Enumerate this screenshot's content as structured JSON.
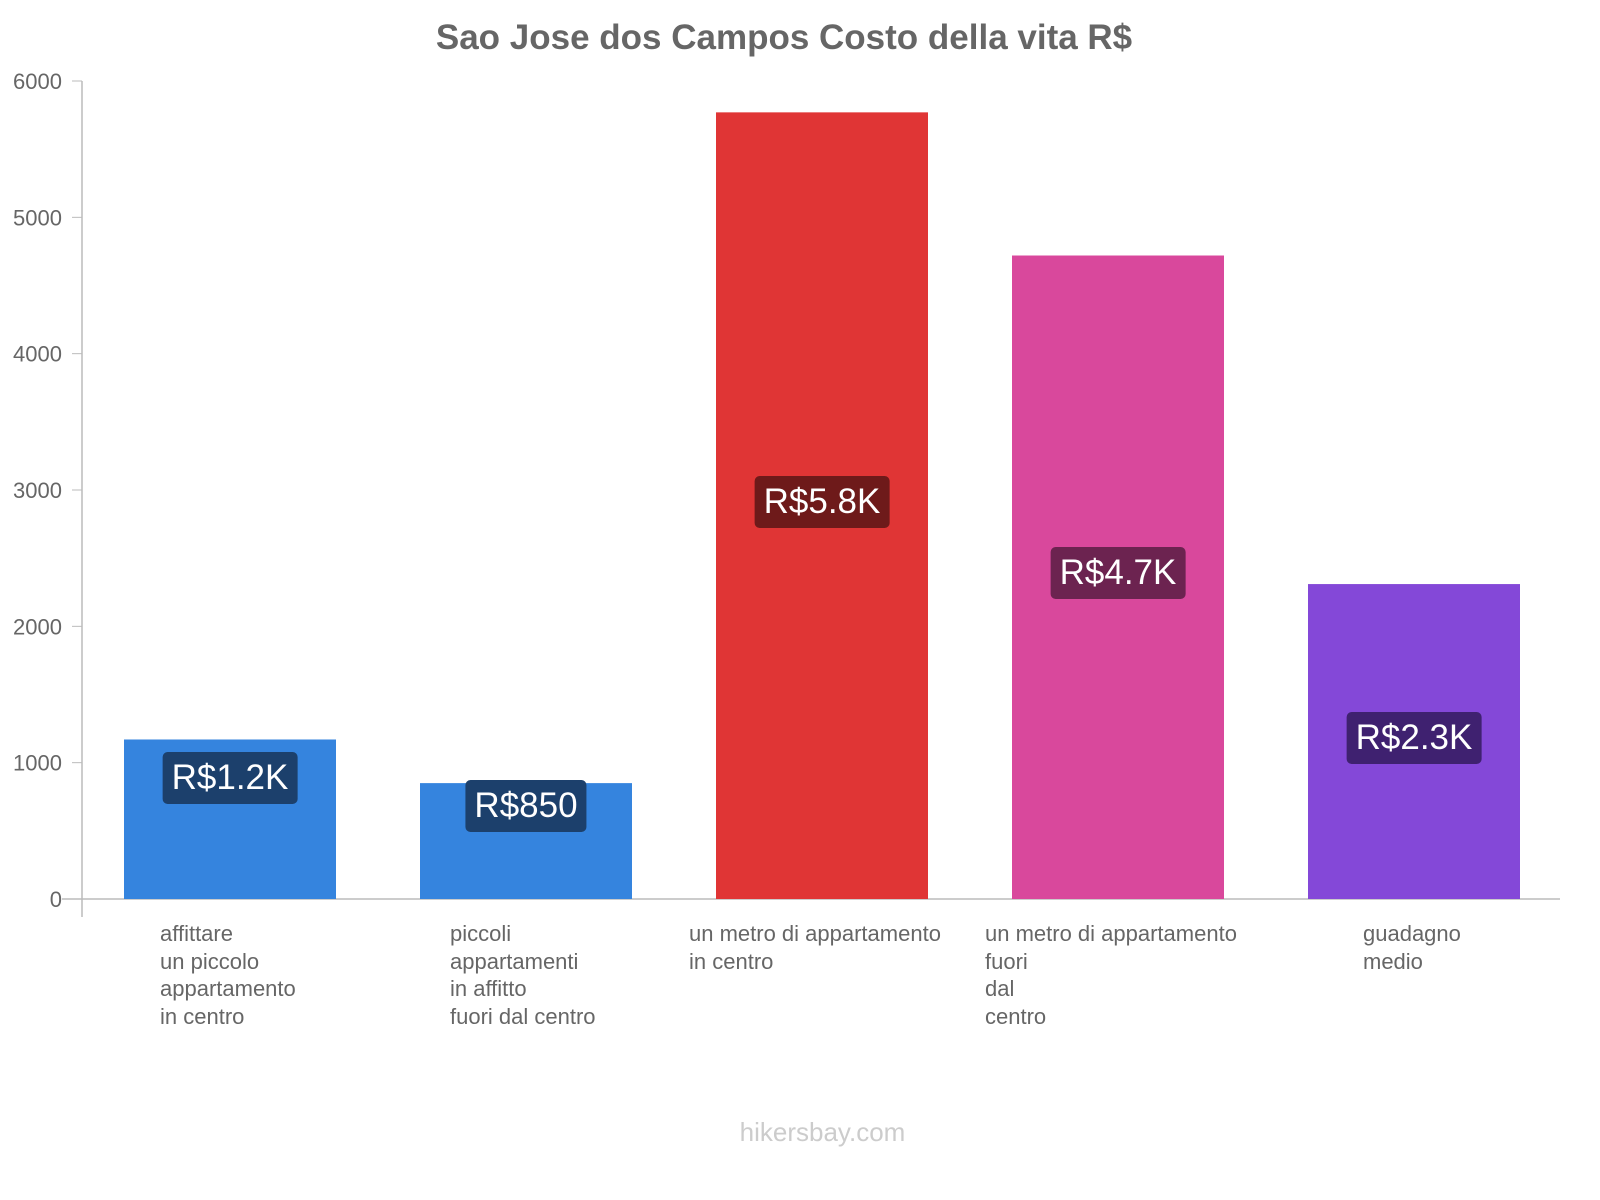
{
  "chart_data": {
    "type": "bar",
    "title": "Sao Jose dos Campos Costo della vita R$",
    "categories": [
      [
        "affittare",
        "un piccolo",
        "appartamento",
        "in centro"
      ],
      [
        "piccoli",
        "appartamenti",
        "in affitto",
        "fuori dal centro"
      ],
      [
        "un metro di appartamento",
        "in centro"
      ],
      [
        "un metro di appartamento",
        "fuori",
        "dal",
        "centro"
      ],
      [
        "guadagno",
        "medio"
      ]
    ],
    "values": [
      1170,
      850,
      5770,
      4720,
      2310
    ],
    "value_labels": [
      "R$1.2K",
      "R$850",
      "R$5.8K",
      "R$4.7K",
      "R$2.3K"
    ],
    "colors": [
      "#3584de",
      "#3584de",
      "#e03535",
      "#d9489c",
      "#8448d8"
    ],
    "label_colors": [
      "#1c406c",
      "#1c406c",
      "#6e1a1a",
      "#6c2350",
      "#3f2170"
    ],
    "ylim": [
      0,
      6000
    ],
    "yticks": [
      0,
      1000,
      2000,
      3000,
      4000,
      5000,
      6000
    ],
    "xlabel": "",
    "ylabel": "",
    "grid": false
  },
  "footer": "hikersbay.com"
}
